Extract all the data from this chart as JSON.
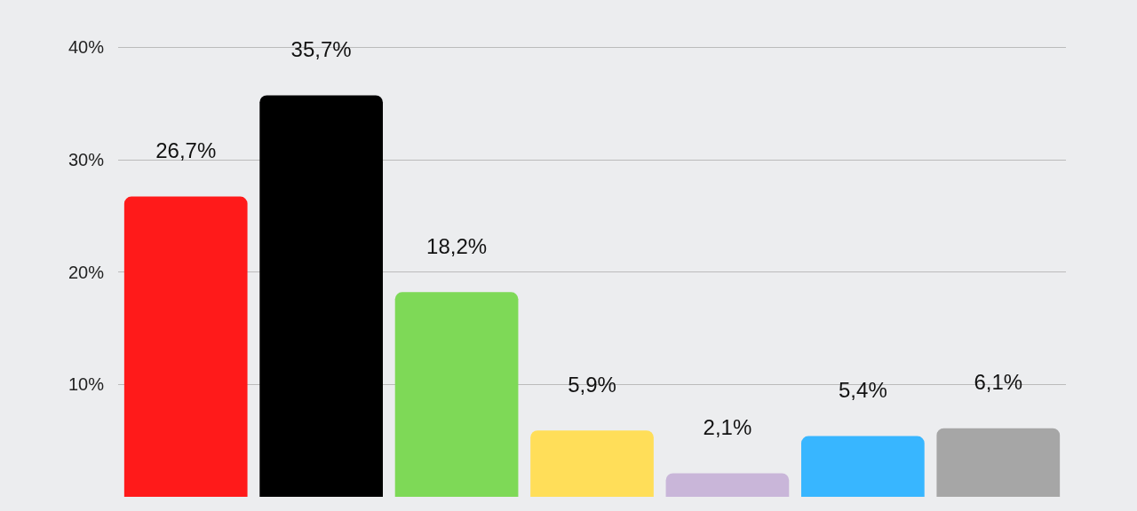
{
  "chart_data": {
    "type": "bar",
    "categories": [
      null,
      null,
      null,
      null,
      null,
      null,
      null
    ],
    "values": [
      26.7,
      35.7,
      18.2,
      5.9,
      2.1,
      5.4,
      6.1
    ],
    "value_labels": [
      "26,7%",
      "35,7%",
      "18,2%",
      "5,9%",
      "2,1%",
      "5,4%",
      "6,1%"
    ],
    "colors": [
      "#ff1a1a",
      "#000000",
      "#7ed957",
      "#ffde59",
      "#c9b6d9",
      "#38b6ff",
      "#a6a6a6"
    ],
    "ylim": [
      0,
      40
    ],
    "yticks": [
      {
        "value": 10,
        "label": "10%"
      },
      {
        "value": 20,
        "label": "20%"
      },
      {
        "value": 30,
        "label": "30%"
      },
      {
        "value": 40,
        "label": "40%"
      }
    ],
    "grid": "y"
  }
}
